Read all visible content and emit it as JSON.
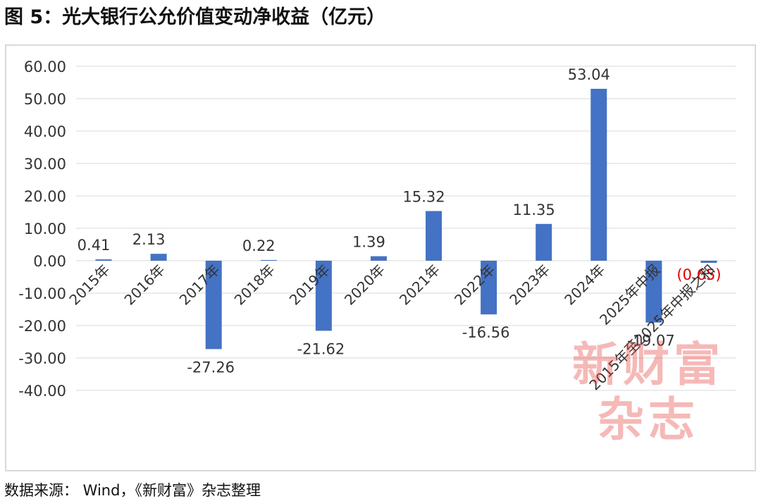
{
  "title": "图 5：光大银行公允价值变动净收益（亿元）",
  "source": "数据来源： Wind，《新财富》杂志整理",
  "watermark": {
    "line1": "新财富",
    "line2": "杂志"
  },
  "colors": {
    "bar": "#4472c4",
    "grid": "#d9d9d9",
    "label": "#333333",
    "highlight_label": "#e00000"
  },
  "chart_data": {
    "type": "bar",
    "title": "光大银行公允价值变动净收益（亿元）",
    "xlabel": "",
    "ylabel": "",
    "ylim": [
      -40,
      60
    ],
    "yticks": [
      60,
      50,
      40,
      30,
      20,
      10,
      0,
      -10,
      -20,
      -30,
      -40
    ],
    "ytick_labels": [
      "60.00",
      "50.00",
      "40.00",
      "30.00",
      "20.00",
      "10.00",
      "0.00",
      "-10.00",
      "-20.00",
      "-30.00",
      "-40.00"
    ],
    "grid": true,
    "legend": "none",
    "categories": [
      "2015年",
      "2016年",
      "2017年",
      "2018年",
      "2019年",
      "2020年",
      "2021年",
      "2022年",
      "2023年",
      "2024年",
      "2025年中报",
      "2015年至2025年中报之和"
    ],
    "values": [
      0.41,
      2.13,
      -27.26,
      0.22,
      -21.62,
      1.39,
      15.32,
      -16.56,
      11.35,
      53.04,
      -19.07,
      -0.65
    ],
    "data_labels": [
      "0.41",
      "2.13",
      "-27.26",
      "0.22",
      "-21.62",
      "1.39",
      "15.32",
      "-16.56",
      "11.35",
      "53.04",
      "-19.07",
      "(0.65)"
    ]
  }
}
